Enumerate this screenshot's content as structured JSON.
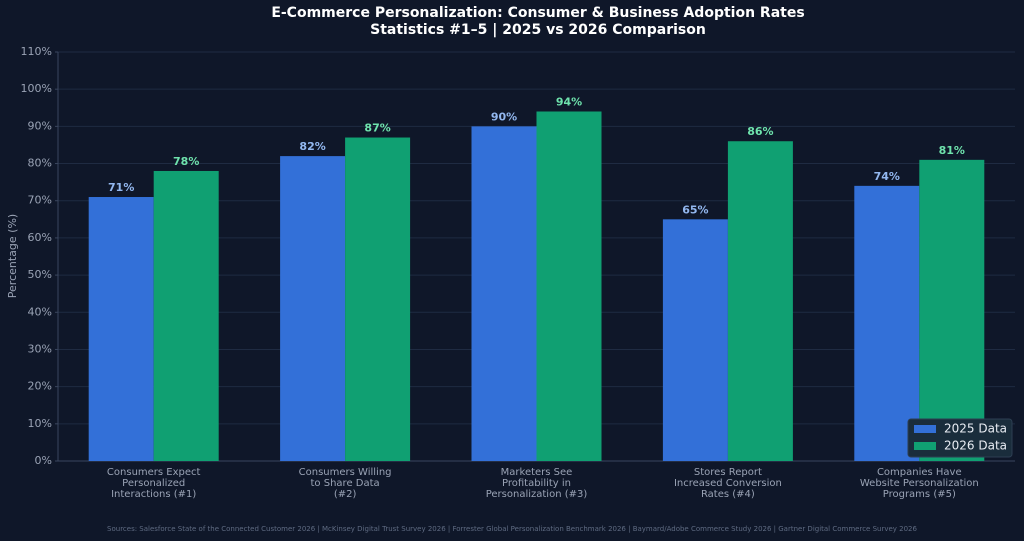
{
  "chart_data": {
    "type": "bar",
    "title": "E-Commerce Personalization: Consumer & Business Adoption Rates",
    "subtitle": "Statistics #1–5 | 2025 vs 2026 Comparison",
    "y_label": "Percentage (%)",
    "categories": [
      "Consumers Expect\nPersonalized\nInteractions (#1)",
      "Consumers Willing\nto Share Data\n(#2)",
      "Marketers See\nProfitability in\nPersonalization (#3)",
      "Stores Report\nIncreased Conversion\nRates (#4)",
      "Companies Have\nWebsite Personalization\nPrograms (#5)"
    ],
    "series": [
      {
        "name": "2025 Data",
        "color": "#3370d8",
        "label_color": "#93b8f0",
        "values": [
          71,
          82,
          90,
          65,
          74
        ],
        "value_labels": [
          "71%",
          "82%",
          "90%",
          "65%",
          "74%"
        ]
      },
      {
        "name": "2026 Data",
        "color": "#10a072",
        "label_color": "#6fe3ad",
        "values": [
          78,
          87,
          94,
          86,
          81
        ],
        "value_labels": [
          "78%",
          "87%",
          "94%",
          "86%",
          "81%"
        ]
      }
    ],
    "ylim": [
      0,
      110
    ],
    "yticks": [
      {
        "value": 0,
        "label": "0%"
      },
      {
        "value": 10,
        "label": "10%"
      },
      {
        "value": 20,
        "label": "20%"
      },
      {
        "value": 30,
        "label": "30%"
      },
      {
        "value": 40,
        "label": "40%"
      },
      {
        "value": 50,
        "label": "50%"
      },
      {
        "value": 60,
        "label": "60%"
      },
      {
        "value": 70,
        "label": "70%"
      },
      {
        "value": 80,
        "label": "80%"
      },
      {
        "value": 90,
        "label": "90%"
      },
      {
        "value": 100,
        "label": "100%"
      },
      {
        "value": 110,
        "label": "110%"
      }
    ],
    "grid": true,
    "legend": "lower right",
    "source": "Sources: Salesforce State of the Connected Customer 2026 | McKinsey Digital Trust Survey 2026 | Forrester Global Personalization Benchmark 2026 | Baymard/Adobe Commerce Study 2026 | Gartner Digital Commerce Survey 2026"
  }
}
